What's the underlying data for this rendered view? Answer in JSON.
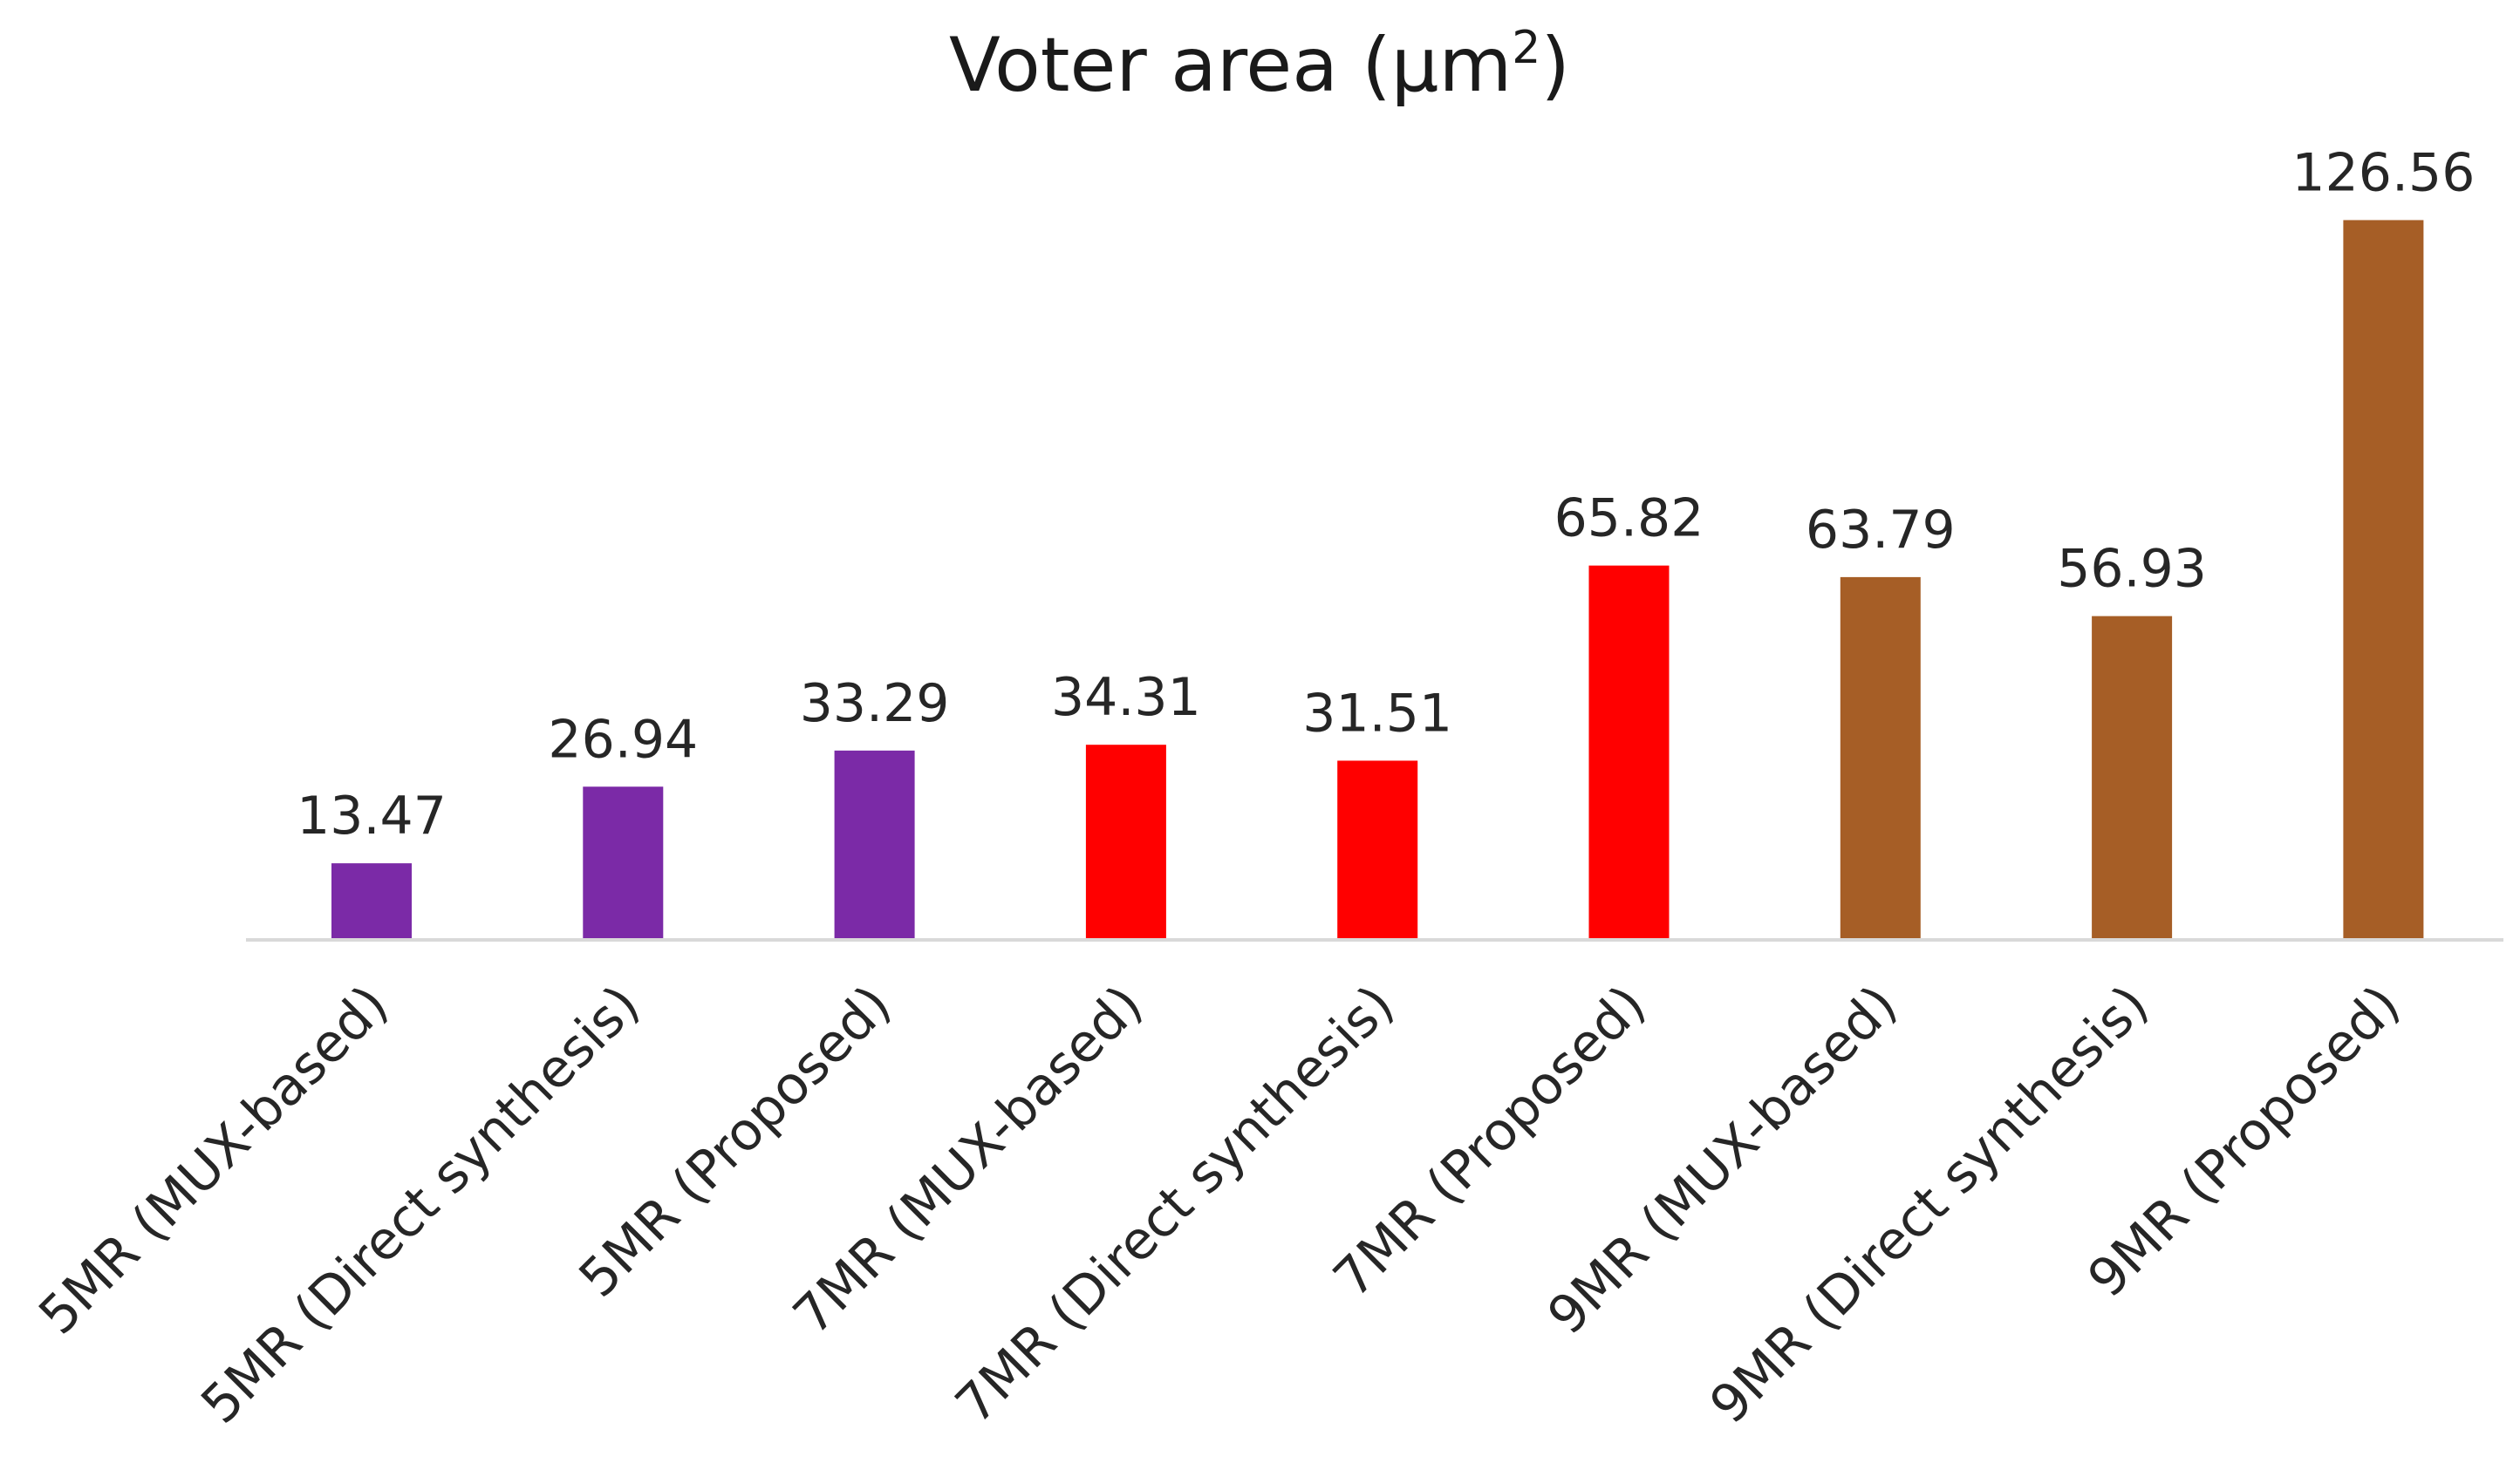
{
  "chart_data": {
    "type": "bar",
    "title": "Voter area (µm",
    "title_superscript": "2",
    "title_suffix": ")",
    "categories": [
      "5MR (MUX-based)",
      "5MR (Direct synthesis)",
      "5MR (Proposed)",
      "7MR (MUX-based)",
      "7MR (Direct synthesis)",
      "7MR (Proposed)",
      "9MR (MUX-based)",
      "9MR (Direct synthesis)",
      "9MR (Proposed)"
    ],
    "values": [
      13.47,
      26.94,
      33.29,
      34.31,
      31.51,
      65.82,
      63.79,
      56.93,
      126.56
    ],
    "data_labels": [
      "13.47",
      "26.94",
      "33.29",
      "34.31",
      "31.51",
      "65.82",
      "63.79",
      "56.93",
      "126.56"
    ],
    "bar_colors": [
      "#7b2aa7",
      "#7b2aa7",
      "#7b2aa7",
      "#ff0000",
      "#ff0000",
      "#ff0000",
      "#a65e26",
      "#a65e26",
      "#a65e26"
    ],
    "xlabel": "",
    "ylabel": "",
    "ylim": [
      0,
      130
    ],
    "grid": false,
    "legend": "none",
    "axis_color": "#d9d9d9"
  }
}
